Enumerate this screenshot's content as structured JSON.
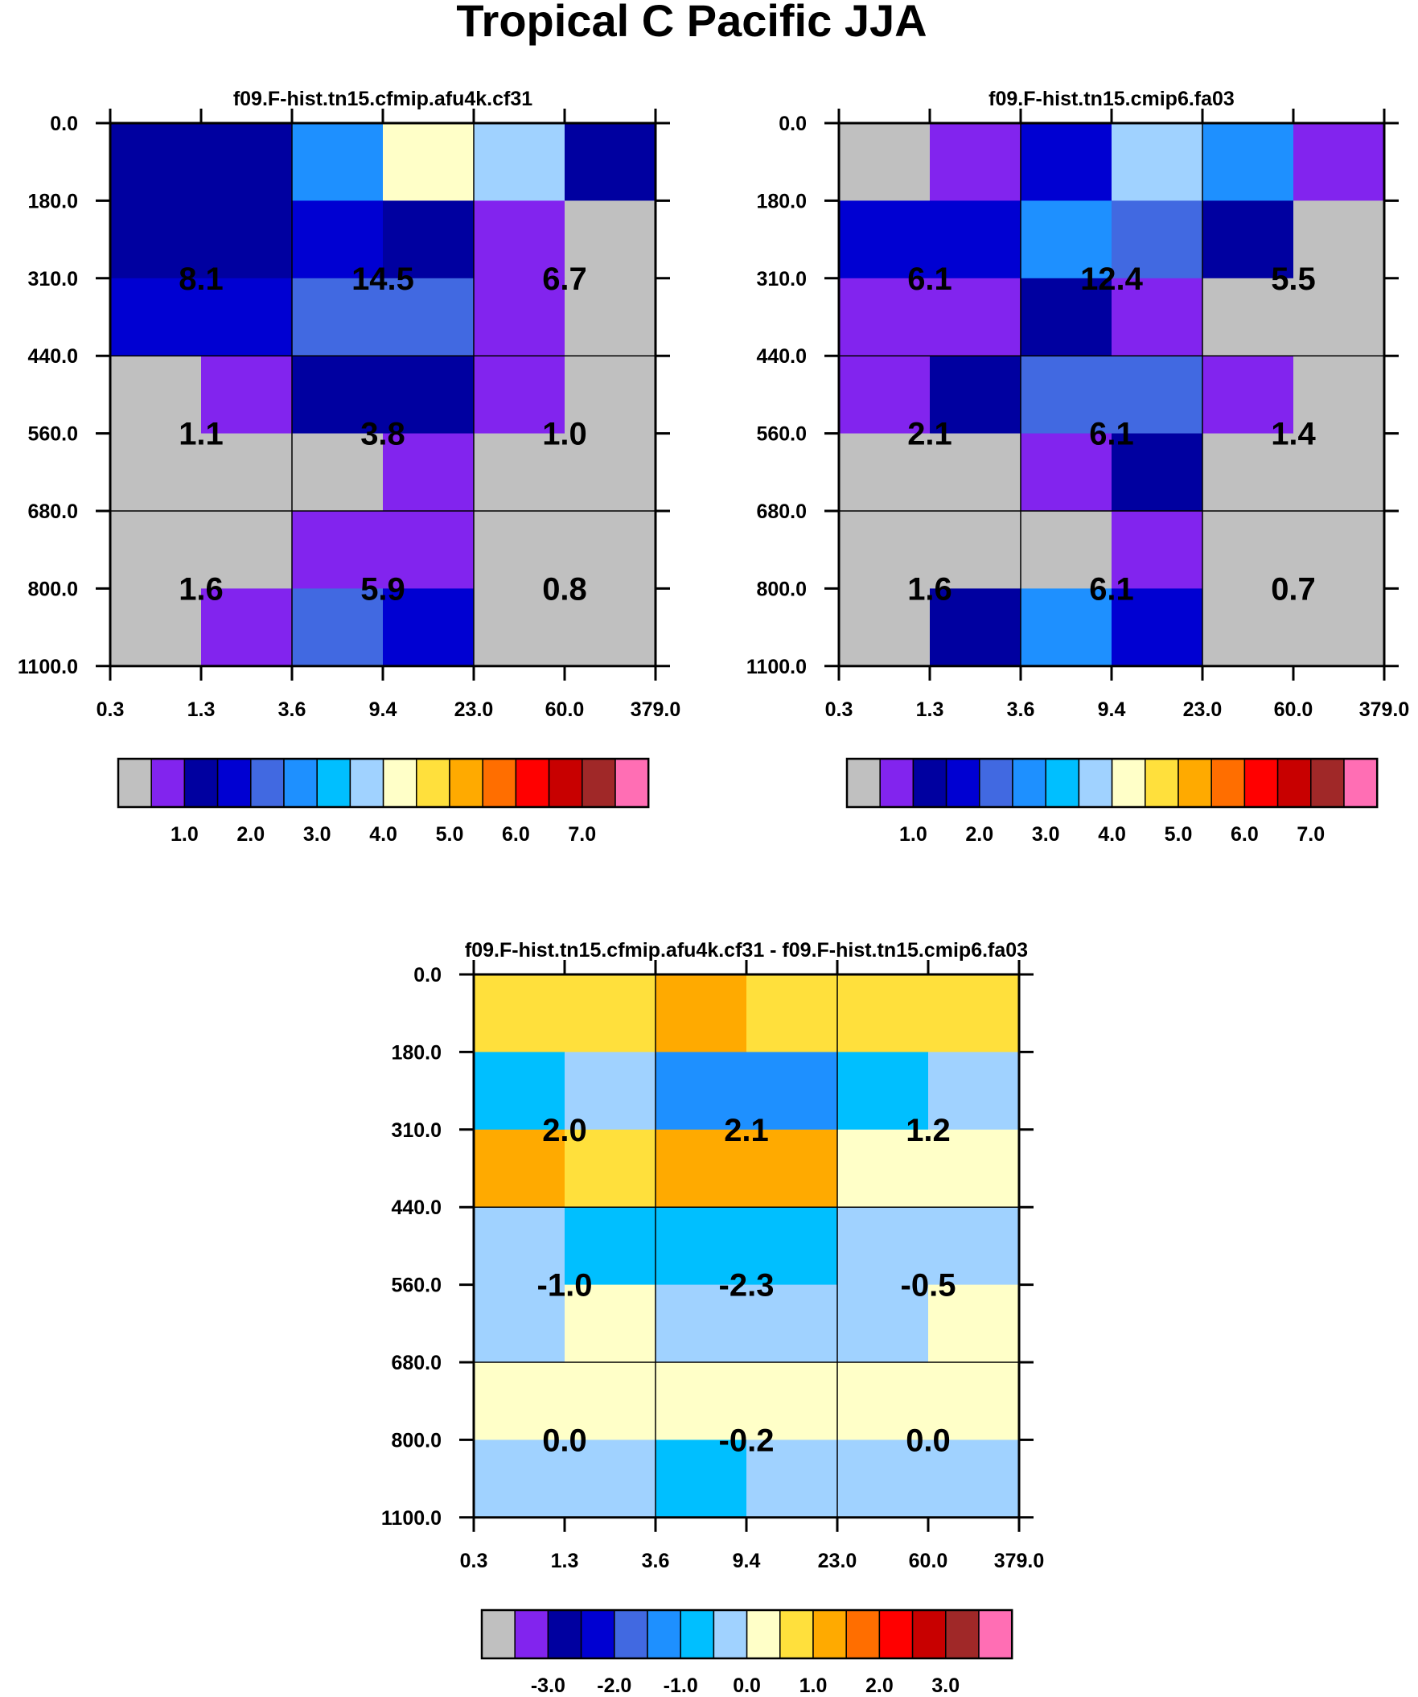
{
  "title": "Tropical C Pacific JJA",
  "cell_colors": {
    "gray": "#c0c0c0",
    "violet": "#8224ee",
    "navy": "#0000a0",
    "blue": "#0000d2",
    "royal": "#4169e1",
    "dodger": "#1e90ff",
    "sky": "#00bfff",
    "lightblue": "#a0d2ff",
    "cream": "#ffffc8",
    "yellow": "#ffe03c",
    "orange": "#ffaa00"
  },
  "chart_data": [
    {
      "type": "heatmap",
      "title": "f09.F-hist.tn15.cfmip.afu4k.cf31",
      "y_ticks": [
        "0.0",
        "180.0",
        "310.0",
        "440.0",
        "560.0",
        "680.0",
        "800.0",
        "1100.0"
      ],
      "x_ticks": [
        "0.3",
        "1.3",
        "3.6",
        "9.4",
        "23.0",
        "60.0",
        "379.0"
      ],
      "cells": [
        [
          "navy",
          "navy",
          "dodger",
          "cream",
          "lightblue",
          "navy"
        ],
        [
          "navy",
          "navy",
          "blue",
          "navy",
          "violet",
          "gray"
        ],
        [
          "blue",
          "blue",
          "royal",
          "royal",
          "violet",
          "gray"
        ],
        [
          "gray",
          "violet",
          "navy",
          "navy",
          "violet",
          "gray"
        ],
        [
          "gray",
          "gray",
          "gray",
          "violet",
          "gray",
          "gray"
        ],
        [
          "gray",
          "gray",
          "violet",
          "violet",
          "gray",
          "gray"
        ],
        [
          "gray",
          "violet",
          "royal",
          "blue",
          "gray",
          "gray"
        ]
      ],
      "block_values": [
        [
          "8.1",
          "14.5",
          "6.7"
        ],
        [
          "1.1",
          "3.8",
          "1.0"
        ],
        [
          "1.6",
          "5.9",
          "0.8"
        ]
      ],
      "colorbar": {
        "colors": [
          "#c0c0c0",
          "#8224ee",
          "#0000a0",
          "#0000d2",
          "#4169e1",
          "#1e90ff",
          "#00bfff",
          "#a0d2ff",
          "#ffffc8",
          "#ffe03c",
          "#ffaa00",
          "#ff6e00",
          "#ff0000",
          "#c80000",
          "#a02828",
          "#ff6eb4"
        ],
        "labels": [
          "1.0",
          "2.0",
          "3.0",
          "4.0",
          "5.0",
          "6.0",
          "7.0"
        ]
      }
    },
    {
      "type": "heatmap",
      "title": "f09.F-hist.tn15.cmip6.fa03",
      "y_ticks": [
        "0.0",
        "180.0",
        "310.0",
        "440.0",
        "560.0",
        "680.0",
        "800.0",
        "1100.0"
      ],
      "x_ticks": [
        "0.3",
        "1.3",
        "3.6",
        "9.4",
        "23.0",
        "60.0",
        "379.0"
      ],
      "cells": [
        [
          "gray",
          "violet",
          "blue",
          "lightblue",
          "dodger",
          "violet"
        ],
        [
          "blue",
          "blue",
          "dodger",
          "royal",
          "navy",
          "gray"
        ],
        [
          "violet",
          "violet",
          "navy",
          "violet",
          "gray",
          "gray"
        ],
        [
          "violet",
          "navy",
          "royal",
          "royal",
          "violet",
          "gray"
        ],
        [
          "gray",
          "gray",
          "violet",
          "navy",
          "gray",
          "gray"
        ],
        [
          "gray",
          "gray",
          "gray",
          "violet",
          "gray",
          "gray"
        ],
        [
          "gray",
          "navy",
          "dodger",
          "blue",
          "gray",
          "gray"
        ]
      ],
      "block_values": [
        [
          "6.1",
          "12.4",
          "5.5"
        ],
        [
          "2.1",
          "6.1",
          "1.4"
        ],
        [
          "1.6",
          "6.1",
          "0.7"
        ]
      ],
      "colorbar": {
        "colors": [
          "#c0c0c0",
          "#8224ee",
          "#0000a0",
          "#0000d2",
          "#4169e1",
          "#1e90ff",
          "#00bfff",
          "#a0d2ff",
          "#ffffc8",
          "#ffe03c",
          "#ffaa00",
          "#ff6e00",
          "#ff0000",
          "#c80000",
          "#a02828",
          "#ff6eb4"
        ],
        "labels": [
          "1.0",
          "2.0",
          "3.0",
          "4.0",
          "5.0",
          "6.0",
          "7.0"
        ]
      }
    },
    {
      "type": "heatmap",
      "title": "f09.F-hist.tn15.cfmip.afu4k.cf31 - f09.F-hist.tn15.cmip6.fa03",
      "y_ticks": [
        "0.0",
        "180.0",
        "310.0",
        "440.0",
        "560.0",
        "680.0",
        "800.0",
        "1100.0"
      ],
      "x_ticks": [
        "0.3",
        "1.3",
        "3.6",
        "9.4",
        "23.0",
        "60.0",
        "379.0"
      ],
      "cells": [
        [
          "yellow",
          "yellow",
          "orange",
          "yellow",
          "yellow",
          "yellow"
        ],
        [
          "sky",
          "lightblue",
          "dodger",
          "dodger",
          "sky",
          "lightblue"
        ],
        [
          "orange",
          "yellow",
          "orange",
          "orange",
          "cream",
          "cream"
        ],
        [
          "lightblue",
          "sky",
          "sky",
          "sky",
          "lightblue",
          "lightblue"
        ],
        [
          "lightblue",
          "cream",
          "lightblue",
          "lightblue",
          "lightblue",
          "cream"
        ],
        [
          "cream",
          "cream",
          "cream",
          "cream",
          "cream",
          "cream"
        ],
        [
          "lightblue",
          "lightblue",
          "sky",
          "lightblue",
          "lightblue",
          "lightblue"
        ]
      ],
      "block_values": [
        [
          "2.0",
          "2.1",
          "1.2"
        ],
        [
          "-1.0",
          "-2.3",
          "-0.5"
        ],
        [
          "0.0",
          "-0.2",
          "0.0"
        ]
      ],
      "colorbar": {
        "colors": [
          "#c0c0c0",
          "#8224ee",
          "#0000a0",
          "#0000d2",
          "#4169e1",
          "#1e90ff",
          "#00bfff",
          "#a0d2ff",
          "#ffffc8",
          "#ffe03c",
          "#ffaa00",
          "#ff6e00",
          "#ff0000",
          "#c80000",
          "#a02828",
          "#ff6eb4"
        ],
        "labels": [
          "-3.0",
          "-2.0",
          "-1.0",
          "0.0",
          "1.0",
          "2.0",
          "3.0"
        ]
      }
    }
  ]
}
